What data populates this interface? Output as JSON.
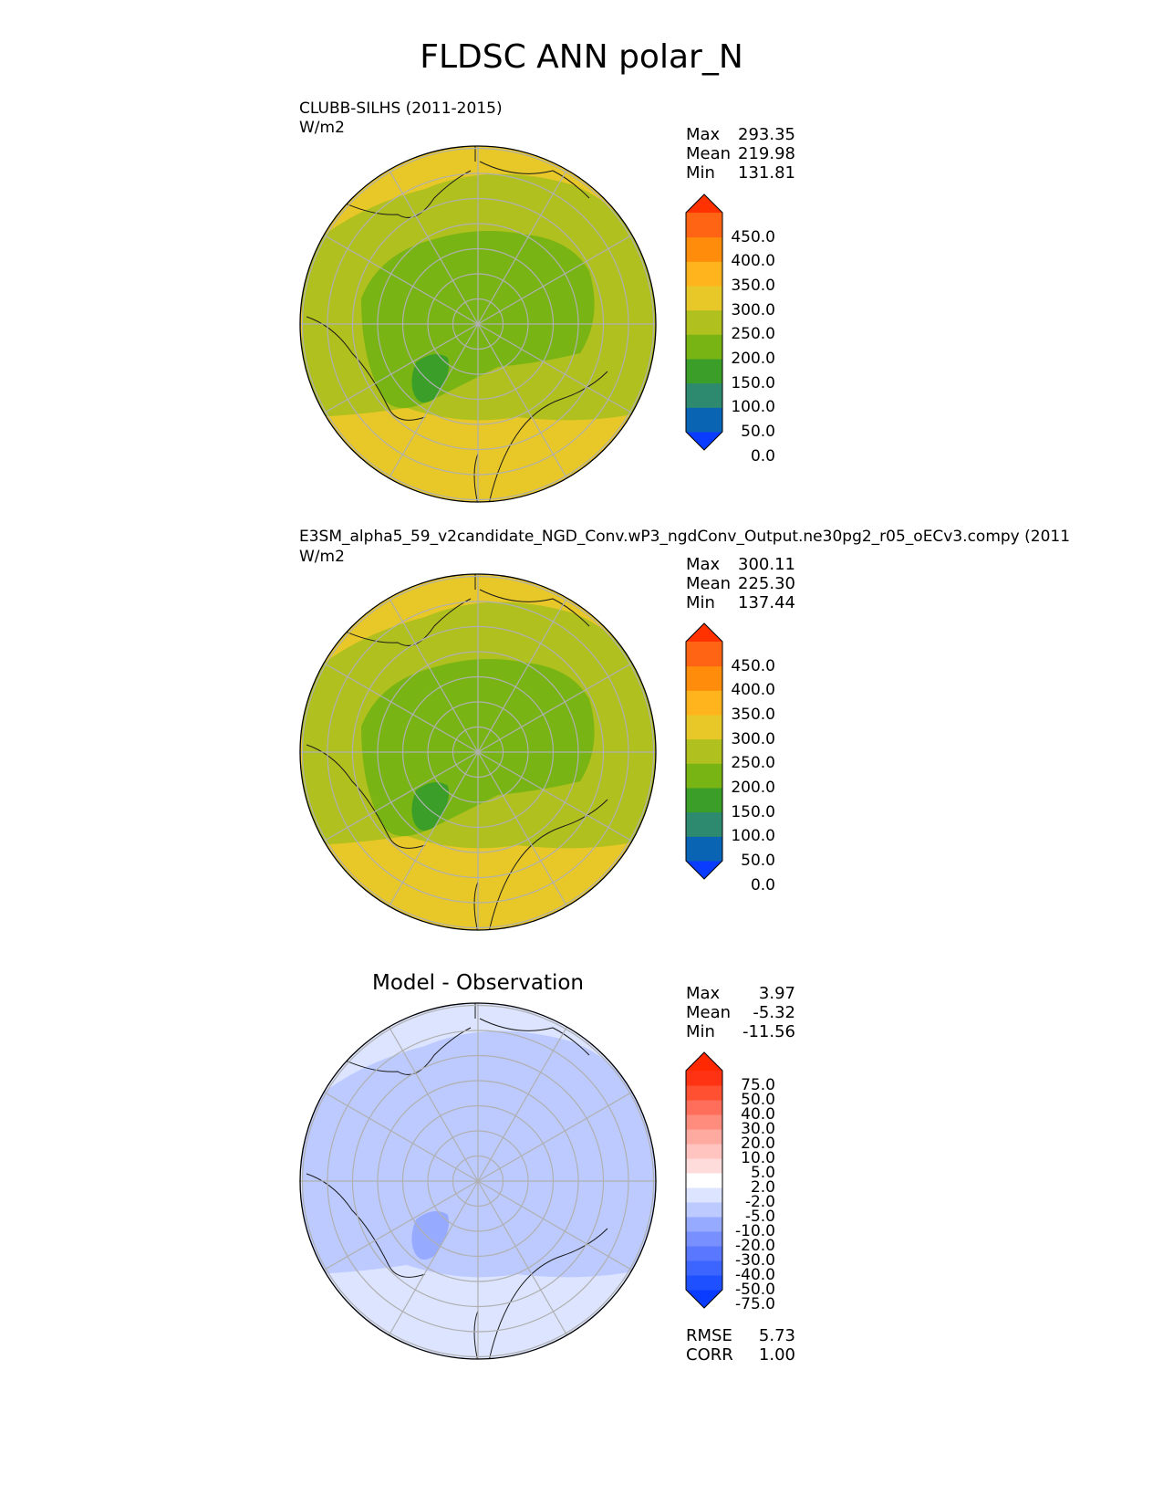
{
  "figure_title": "FLDSC ANN polar_N",
  "chart_data": [
    {
      "type": "heatmap",
      "projection": "north polar stereographic",
      "title": "CLUBB-SILHS (2011-2015)",
      "units": "W/m2",
      "stats": {
        "max": "293.35",
        "mean": "219.98",
        "min": "131.81"
      },
      "stat_labels": {
        "max": "Max",
        "mean": "Mean",
        "min": "Min"
      },
      "colorbar": {
        "levels": [
          0,
          50,
          100,
          150,
          200,
          250,
          300,
          350,
          400,
          450
        ],
        "tick_labels": [
          "450.0",
          "400.0",
          "350.0",
          "300.0",
          "250.0",
          "200.0",
          "150.0",
          "100.0",
          "50.0",
          "0.0"
        ],
        "colors": [
          "#0a3cff",
          "#0a64b4",
          "#2e8a6e",
          "#3a9e28",
          "#78b414",
          "#b0c01e",
          "#e8c828",
          "#ffb41e",
          "#ff8c0a",
          "#ff6414",
          "#ff3200"
        ],
        "extend": "both"
      },
      "field_colors": {
        "ocean_low": "#e8c828",
        "mid": "#b0c01e",
        "high": "#78b414",
        "core": "#3a9e28"
      }
    },
    {
      "type": "heatmap",
      "projection": "north polar stereographic",
      "title": "E3SM_alpha5_59_v2candidate_NGD_Conv.wP3_ngdConv_Output.ne30pg2_r05_oECv3.compy (2011",
      "units": "W/m2",
      "stats": {
        "max": "300.11",
        "mean": "225.30",
        "min": "137.44"
      },
      "stat_labels": {
        "max": "Max",
        "mean": "Mean",
        "min": "Min"
      },
      "colorbar": {
        "levels": [
          0,
          50,
          100,
          150,
          200,
          250,
          300,
          350,
          400,
          450
        ],
        "tick_labels": [
          "450.0",
          "400.0",
          "350.0",
          "300.0",
          "250.0",
          "200.0",
          "150.0",
          "100.0",
          "50.0",
          "0.0"
        ],
        "colors": [
          "#0a3cff",
          "#0a64b4",
          "#2e8a6e",
          "#3a9e28",
          "#78b414",
          "#b0c01e",
          "#e8c828",
          "#ffb41e",
          "#ff8c0a",
          "#ff6414",
          "#ff3200"
        ],
        "extend": "both"
      },
      "field_colors": {
        "ocean_low": "#e8c828",
        "mid": "#b0c01e",
        "high": "#78b414",
        "core": "#3a9e28"
      }
    },
    {
      "type": "heatmap",
      "projection": "north polar stereographic",
      "title": "Model - Observation",
      "stats": {
        "max": "3.97",
        "mean": "-5.32",
        "min": "-11.56"
      },
      "stat_labels": {
        "max": "Max",
        "mean": "Mean",
        "min": "Min"
      },
      "metrics": {
        "rmse": "5.73",
        "corr": "1.00"
      },
      "metric_labels": {
        "rmse": "RMSE",
        "corr": "CORR"
      },
      "colorbar": {
        "levels": [
          -75,
          -50,
          -40,
          -30,
          -20,
          -10,
          -5,
          -2,
          2,
          5,
          10,
          20,
          30,
          40,
          50,
          75
        ],
        "tick_labels": [
          "75.0",
          "50.0",
          "40.0",
          "30.0",
          "20.0",
          "10.0",
          "5.0",
          "2.0",
          "-2.0",
          "-5.0",
          "-10.0",
          "-20.0",
          "-30.0",
          "-40.0",
          "-50.0",
          "-75.0"
        ],
        "colors": [
          "#0a3cff",
          "#1e50ff",
          "#3c64ff",
          "#5a78ff",
          "#7890ff",
          "#96aaff",
          "#bccaff",
          "#dce4ff",
          "#ffffff",
          "#ffdcdc",
          "#ffc4c0",
          "#ffaaa0",
          "#ff8c7c",
          "#ff6e5a",
          "#ff5032",
          "#ff3214",
          "#ff2800"
        ],
        "extend": "both"
      },
      "field_colors": {
        "ocean_low": "#dce4ff",
        "mid": "#bccaff",
        "high": "#bccaff",
        "core": "#96aaff"
      }
    }
  ]
}
